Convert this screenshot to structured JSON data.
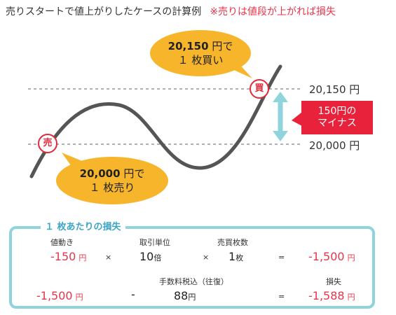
{
  "header": {
    "title": "売りスタートで値上がりしたケースの計算例",
    "note": "※売りは値段が上がれば損失"
  },
  "chart": {
    "price_high": "20,150 円",
    "price_low": "20,000 円",
    "sell_marker": "売",
    "buy_marker": "買",
    "bubble_buy": {
      "amount": "20,150",
      "unit": " 円で",
      "line2": "１ 枚買い"
    },
    "bubble_sell": {
      "amount": "20,000",
      "unit": " 円で",
      "line2": "１ 枚売り"
    },
    "minus_label": {
      "line1": "150円の",
      "line2": "マイナス"
    },
    "colors": {
      "curve": "#555555",
      "bubble": "#f7b52c",
      "minus": "#e8223a",
      "arrow": "#8fd4dc"
    }
  },
  "calc": {
    "title": "１ 枚あたりの損失",
    "row1": {
      "h_price": "値動き",
      "price": "-150",
      "price_unit": "円",
      "times1": "×",
      "h_unit": "取引単位",
      "unit_val": "10",
      "unit_suffix": "倍",
      "times2": "×",
      "h_qty": "売買枚数",
      "qty": "1",
      "qty_suffix": "枚",
      "equals": "=",
      "result": "-1,500",
      "result_unit": "円"
    },
    "row2": {
      "left": "-1,500",
      "left_unit": "円",
      "minus": "-",
      "h_fee": "手数料税込（往復）",
      "fee": "88",
      "fee_unit": "円",
      "equals": "=",
      "h_loss": "損失",
      "loss": "-1,588",
      "loss_unit": "円"
    }
  }
}
